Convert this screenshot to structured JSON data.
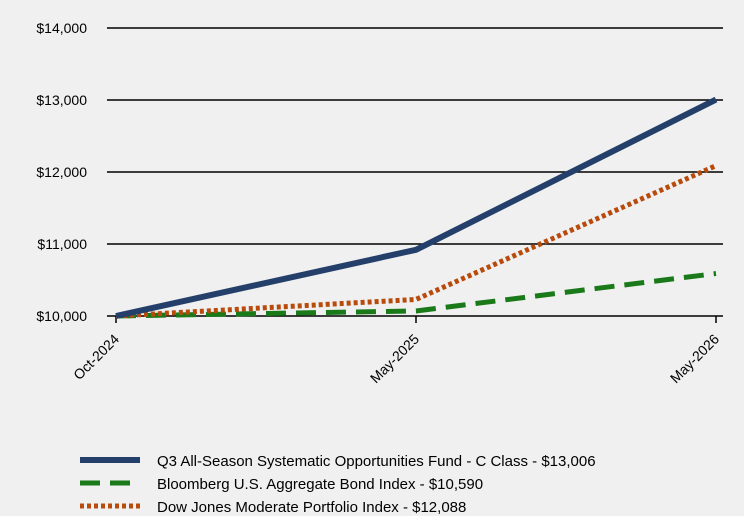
{
  "chart_data": {
    "type": "line",
    "categories": [
      "Oct-2024",
      "May-2025",
      "May-2026"
    ],
    "ylim": [
      10000,
      14000
    ],
    "yticks": [
      "$10,000",
      "$11,000",
      "$12,000",
      "$13,000",
      "$14,000"
    ],
    "ytick_values": [
      10000,
      11000,
      12000,
      13000,
      14000
    ],
    "grid": "horizontal",
    "legend_position": "bottom-left",
    "series": [
      {
        "name": "Q3 All-Season Systematic Opportunities Fund - C Class - $13,006",
        "values": [
          10000,
          10920,
          13006
        ],
        "color": "#243f6a",
        "style": "solid"
      },
      {
        "name": "Bloomberg U.S. Aggregate Bond Index - $10,590",
        "values": [
          10000,
          10070,
          10590
        ],
        "color": "#1a7a1a",
        "style": "dashed"
      },
      {
        "name": "Dow Jones Moderate Portfolio Index - $12,088",
        "values": [
          10000,
          10230,
          12088
        ],
        "color": "#b84a0c",
        "style": "dotted"
      }
    ]
  }
}
